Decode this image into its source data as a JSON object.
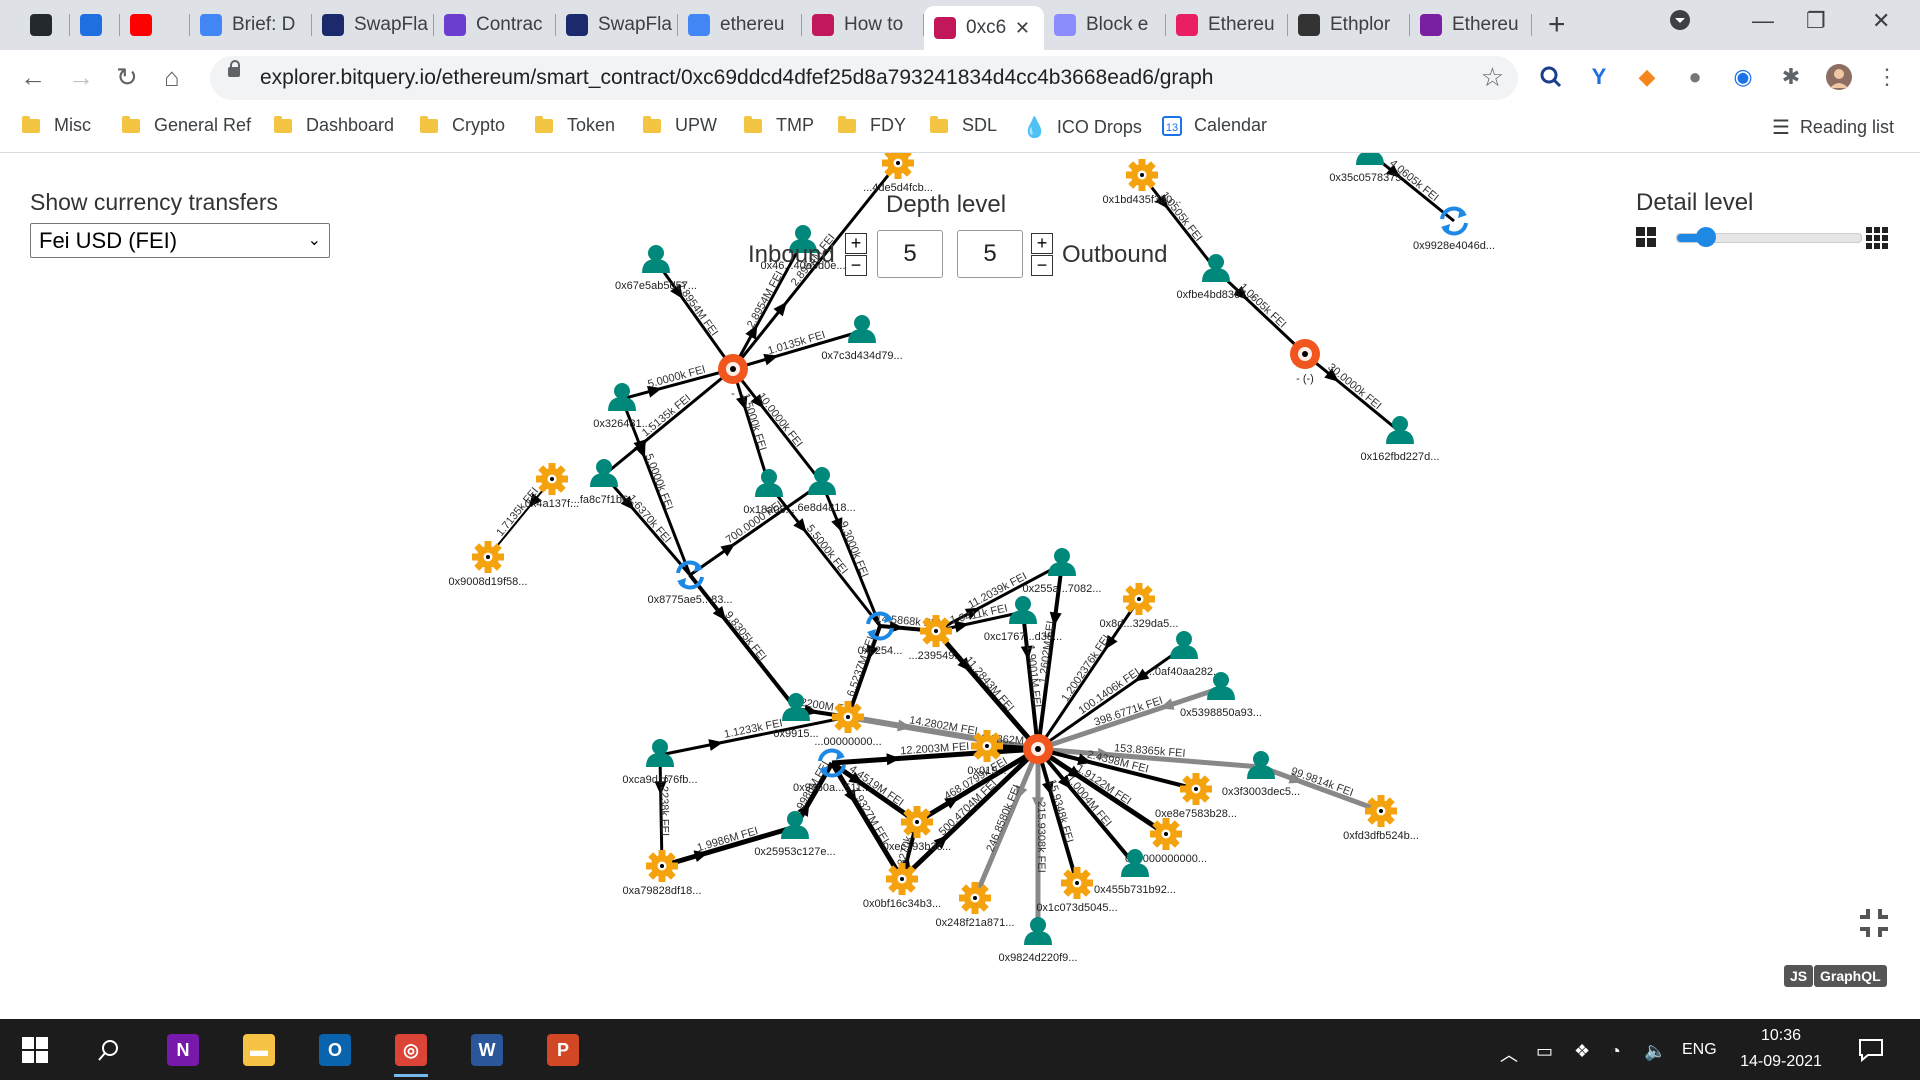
{
  "tabs": [
    {
      "label": "",
      "icon": "github-icon",
      "color": "#24292e"
    },
    {
      "label": "",
      "icon": "bitquery-icon",
      "color": "#1e6fe0"
    },
    {
      "label": "",
      "icon": "youtube-icon",
      "color": "#ff0000"
    },
    {
      "label": "Brief: D",
      "icon": "docs-icon",
      "color": "#4285f4"
    },
    {
      "label": "SwapFla",
      "icon": "swapflag-icon",
      "color": "#1b2a6b"
    },
    {
      "label": "Contrac",
      "icon": "contract-icon",
      "color": "#6c3ecf"
    },
    {
      "label": "SwapFla",
      "icon": "swapflag-icon",
      "color": "#1b2a6b"
    },
    {
      "label": "ethereu",
      "icon": "google-icon",
      "color": "#4285f4"
    },
    {
      "label": "How to",
      "icon": "bitquery-explorer-icon",
      "color": "#c2185b"
    },
    {
      "label": "0xc6",
      "icon": "bitquery-explorer-icon",
      "color": "#c2185b"
    },
    {
      "label": "Block e",
      "icon": "ethereum-icon",
      "color": "#8c8cff"
    },
    {
      "label": "Ethereu",
      "icon": "cube-icon",
      "color": "#e91e63"
    },
    {
      "label": "Ethplor",
      "icon": "ethplorer-icon",
      "color": "#333333"
    },
    {
      "label": "Ethereu",
      "icon": "etherscan-icon",
      "color": "#7b1fa2"
    }
  ],
  "address_bar": {
    "url": "explorer.bitquery.io/ethereum/smart_contract/0xc69ddcd4dfef25d8a793241834d4cc4b3668ead6/graph"
  },
  "bookmarks": [
    {
      "label": "Misc",
      "type": "folder"
    },
    {
      "label": "General Ref",
      "type": "folder"
    },
    {
      "label": "Dashboard",
      "type": "folder"
    },
    {
      "label": "Crypto",
      "type": "folder"
    },
    {
      "label": "Token",
      "type": "folder"
    },
    {
      "label": "UPW",
      "type": "folder"
    },
    {
      "label": "TMP",
      "type": "folder"
    },
    {
      "label": "FDY",
      "type": "folder"
    },
    {
      "label": "SDL",
      "type": "folder"
    },
    {
      "label": "ICO Drops",
      "type": "drop"
    },
    {
      "label": "Calendar",
      "type": "calendar"
    }
  ],
  "reading_list": "Reading list",
  "controls": {
    "currency_label": "Show currency transfers",
    "currency_value": "Fei USD (FEI)",
    "depth_label": "Depth level",
    "inbound_label": "Inbound",
    "outbound_label": "Outbound",
    "inbound_value": "5",
    "outbound_value": "5",
    "plus": "+",
    "minus": "−",
    "detail_label": "Detail level",
    "detail_fraction": 0.16
  },
  "buttons": {
    "js": "JS",
    "graphql": "GraphQL"
  },
  "colors": {
    "address": "#00897b",
    "contract": "#f4a30e",
    "center": "#f0561d",
    "swap": "#1e88e5",
    "edge": "#000000",
    "edge_light": "#888888"
  },
  "graph": {
    "nodes": [
      {
        "id": "n1",
        "type": "contract",
        "label": "...4de5d4fcb..."
      },
      {
        "id": "n2",
        "type": "address",
        "label": "0x46...40a5d0e..."
      },
      {
        "id": "n3",
        "type": "address",
        "label": "0x67e5ab5d57..."
      },
      {
        "id": "n4",
        "type": "center",
        "label": "-"
      },
      {
        "id": "n5",
        "type": "address",
        "label": "0x7c3d434d79..."
      },
      {
        "id": "n6",
        "type": "address",
        "label": "0x326481..."
      },
      {
        "id": "n7",
        "type": "contract",
        "label": "0x4a137f..."
      },
      {
        "id": "n8",
        "type": "address",
        "label": "...fa8c7f1b6..."
      },
      {
        "id": "n9",
        "type": "contract",
        "label": "0x9008d19f58..."
      },
      {
        "id": "n10",
        "type": "swap",
        "label": "0x8775ae5...83..."
      },
      {
        "id": "n11",
        "type": "address",
        "label": "0x18a08..."
      },
      {
        "id": "n12",
        "type": "address",
        "label": "...6e8d4818..."
      },
      {
        "id": "n13",
        "type": "contract",
        "label": "0x1bd435f3a0..."
      },
      {
        "id": "n14",
        "type": "address",
        "label": "0x35c0578375..."
      },
      {
        "id": "n15",
        "type": "swap",
        "label": "0x9928e4046d..."
      },
      {
        "id": "n16",
        "type": "address",
        "label": "0xfbe4bd8367..."
      },
      {
        "id": "n17",
        "type": "center",
        "label": "- (-)"
      },
      {
        "id": "n18",
        "type": "address",
        "label": "0x162fbd227d..."
      },
      {
        "id": "n19",
        "type": "swap",
        "label": "0xc254..."
      },
      {
        "id": "n20",
        "type": "contract",
        "label": "...239549..."
      },
      {
        "id": "n21",
        "type": "address",
        "label": "0x255a...7082..."
      },
      {
        "id": "n22",
        "type": "contract",
        "label": "0x8d...329da5..."
      },
      {
        "id": "n23",
        "type": "address",
        "label": "0xc1767...d38..."
      },
      {
        "id": "n24",
        "type": "address",
        "label": "...0af40aa282..."
      },
      {
        "id": "n25",
        "type": "address",
        "label": "0x5398850a93..."
      },
      {
        "id": "n26",
        "type": "address",
        "label": "0x9915..."
      },
      {
        "id": "n27",
        "type": "contract",
        "label": "...00000000..."
      },
      {
        "id": "n28",
        "type": "contract",
        "label": "0x019..."
      },
      {
        "id": "n29",
        "type": "center",
        "label": ""
      },
      {
        "id": "n30",
        "type": "address",
        "label": "0xca9d1f76fb..."
      },
      {
        "id": "n31",
        "type": "swap",
        "label": "0x94b0a...511..."
      },
      {
        "id": "n32",
        "type": "address",
        "label": "0x3f3003dec5..."
      },
      {
        "id": "n33",
        "type": "contract",
        "label": "0xe8e7583b28..."
      },
      {
        "id": "n34",
        "type": "contract",
        "label": "0xfd3dfb524b..."
      },
      {
        "id": "n35",
        "type": "address",
        "label": "0x25953c127e..."
      },
      {
        "id": "n36",
        "type": "contract",
        "label": "0xec193b3c..."
      },
      {
        "id": "n37",
        "type": "contract",
        "label": "0x0000000000..."
      },
      {
        "id": "n38",
        "type": "contract",
        "label": "0xa79828df18..."
      },
      {
        "id": "n39",
        "type": "contract",
        "label": "0x0bf16c34b3..."
      },
      {
        "id": "n40",
        "type": "address",
        "label": "0x455b731b92..."
      },
      {
        "id": "n41",
        "type": "contract",
        "label": "0x1c073d5045..."
      },
      {
        "id": "n42",
        "type": "contract",
        "label": "0x248f21a871..."
      },
      {
        "id": "n43",
        "type": "address",
        "label": "0x9824d220f9..."
      }
    ],
    "edges": [
      {
        "from": "n4",
        "to": "n1",
        "label": "2.8954M FEI",
        "w": 3
      },
      {
        "from": "n4",
        "to": "n2",
        "label": "2.8954M FEI",
        "w": 3
      },
      {
        "from": "n3",
        "to": "n4",
        "label": "2.8954M FEI",
        "w": 3
      },
      {
        "from": "n4",
        "to": "n5",
        "label": "1.0135k FEI",
        "w": 3
      },
      {
        "from": "n6",
        "to": "n4",
        "label": "5.0000k FEI",
        "w": 3
      },
      {
        "from": "n8",
        "to": "n4",
        "label": "1.5135k FEI",
        "w": 3
      },
      {
        "from": "n4",
        "to": "n11",
        "label": "1.5000k FEI",
        "w": 3
      },
      {
        "from": "n4",
        "to": "n12",
        "label": "10.0000k FEI",
        "w": 3
      },
      {
        "from": "n6",
        "to": "n10",
        "label": "5.0000k FEI",
        "w": 3
      },
      {
        "from": "n7",
        "to": "n9",
        "label": "1.7135k FEI",
        "w": 2
      },
      {
        "from": "n8",
        "to": "n10",
        "label": "1.6370k FEI",
        "w": 3
      },
      {
        "from": "n10",
        "to": "n12",
        "label": "700.0000 FEI",
        "w": 3
      },
      {
        "from": "n11",
        "to": "n19",
        "label": "5.5000k FEI",
        "w": 3
      },
      {
        "from": "n12",
        "to": "n19",
        "label": "9.3000k FEI",
        "w": 3
      },
      {
        "from": "n10",
        "to": "n26",
        "label": "9.8305k FEI",
        "w": 4
      },
      {
        "from": "n13",
        "to": "n16",
        "label": "1.0505k FEI",
        "w": 3
      },
      {
        "from": "n14",
        "to": "n15",
        "label": "4.0605k FEI",
        "w": 3
      },
      {
        "from": "n16",
        "to": "n17",
        "label": "1.0605k FEI",
        "w": 3
      },
      {
        "from": "n17",
        "to": "n18",
        "label": "30.0000k FEI",
        "w": 3
      },
      {
        "from": "n19",
        "to": "n20",
        "label": "14.5868k FEI",
        "w": 4
      },
      {
        "from": "n20",
        "to": "n21",
        "label": "11.2039k FEI",
        "w": 3
      },
      {
        "from": "n20",
        "to": "n23",
        "label": "1.9411k FEI",
        "w": 3
      },
      {
        "from": "n19",
        "to": "n27",
        "label": "6.5237M FEI",
        "w": 4
      },
      {
        "from": "n20",
        "to": "n29",
        "label": "11.2843M FEI",
        "w": 5
      },
      {
        "from": "n23",
        "to": "n29",
        "label": "1.9001M FEI",
        "w": 4
      },
      {
        "from": "n21",
        "to": "n29",
        "label": "1.2602M FEI",
        "w": 4
      },
      {
        "from": "n22",
        "to": "n29",
        "label": "1.2002376k FEI",
        "w": 3
      },
      {
        "from": "n24",
        "to": "n29",
        "label": "100.1406k FEI",
        "w": 3
      },
      {
        "from": "n25",
        "to": "n29",
        "label": "398.6771k FEI",
        "w": 5,
        "light": true
      },
      {
        "from": "n29",
        "to": "n32",
        "label": "153.8365k FEI",
        "w": 5,
        "light": true
      },
      {
        "from": "n32",
        "to": "n34",
        "label": "99.9814k FEI",
        "w": 5,
        "light": true
      },
      {
        "from": "n29",
        "to": "n33",
        "label": "2.4398M FEI",
        "w": 4
      },
      {
        "from": "n29",
        "to": "n37",
        "label": "1.9122M FEI",
        "w": 5
      },
      {
        "from": "n29",
        "to": "n40",
        "label": "1.0004M FEI",
        "w": 4
      },
      {
        "from": "n29",
        "to": "n41",
        "label": "15.9348k FEI",
        "w": 4
      },
      {
        "from": "n29",
        "to": "n42",
        "label": "246.8580k FEI",
        "w": 5,
        "light": true
      },
      {
        "from": "n29",
        "to": "n43",
        "label": "215.9308k FEI",
        "w": 5,
        "light": true
      },
      {
        "from": "n27",
        "to": "n29",
        "label": "14.2802M FEI",
        "w": 6,
        "light": true
      },
      {
        "from": "n28",
        "to": "n29",
        "label": "2.0862M FEI",
        "w": 5
      },
      {
        "from": "n31",
        "to": "n29",
        "label": "12.2003M FEI",
        "w": 5
      },
      {
        "from": "n36",
        "to": "n29",
        "label": "468.0799k FEI",
        "w": 5
      },
      {
        "from": "n39",
        "to": "n29",
        "label": "500.4704M FEI",
        "w": 5
      },
      {
        "from": "n26",
        "to": "n27",
        "label": "1.2200M FEI",
        "w": 4
      },
      {
        "from": "n30",
        "to": "n27",
        "label": "1.1233k FEI",
        "w": 3
      },
      {
        "from": "n30",
        "to": "n38",
        "label": "8.2238k FEI",
        "w": 3
      },
      {
        "from": "n38",
        "to": "n35",
        "label": "1.9986M FEI",
        "w": 5
      },
      {
        "from": "n35",
        "to": "n31",
        "label": "1.9986M FEI",
        "w": 5
      },
      {
        "from": "n31",
        "to": "n36",
        "label": "4.4519M FEI",
        "w": 5
      },
      {
        "from": "n31",
        "to": "n39",
        "label": "1.9327M FEI",
        "w": 5
      },
      {
        "from": "n39",
        "to": "n36",
        "label": "9.3270k FEI",
        "w": 4
      }
    ]
  },
  "taskbar": {
    "apps": [
      {
        "icon": "onenote-icon",
        "color": "#7719aa"
      },
      {
        "icon": "file-explorer-icon",
        "color": "#f7c344"
      },
      {
        "icon": "outlook-icon",
        "color": "#0a64ad"
      },
      {
        "icon": "chrome-icon",
        "color": "#db4437"
      },
      {
        "icon": "word-icon",
        "color": "#2b579a"
      },
      {
        "icon": "powerpoint-icon",
        "color": "#d24726"
      }
    ],
    "lang": "ENG",
    "time": "10:36",
    "date": "14-09-2021"
  }
}
